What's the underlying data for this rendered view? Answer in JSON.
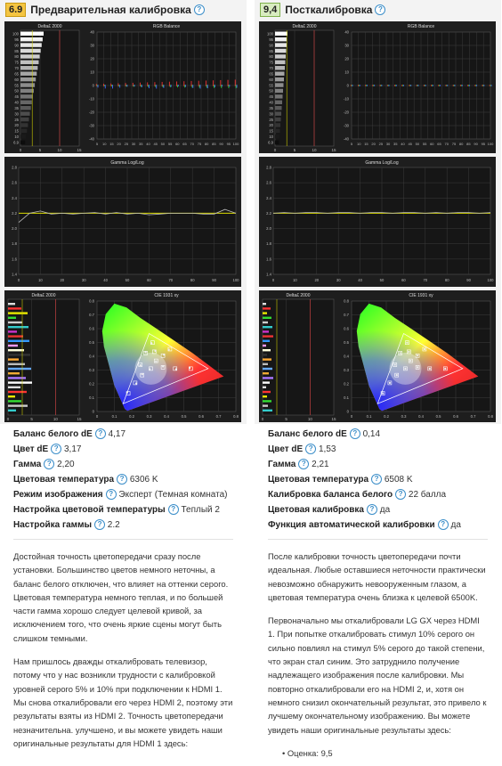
{
  "left": {
    "score": "6.9",
    "title": "Предварительная калибровка",
    "charts": {
      "grayscale": {
        "title": "Delta£ 2000",
        "rgb_title": "RGB Balance",
        "y_ticks": [
          "100",
          "95",
          "90",
          "85",
          "80",
          "75",
          "70",
          "65",
          "60",
          "55",
          "50",
          "45",
          "40",
          "35",
          "30",
          "25",
          "20",
          "15",
          "10",
          "6.9"
        ],
        "x_ticks": [
          "0",
          "5",
          "10",
          "15"
        ],
        "rgb_y_ticks": [
          "40",
          "30",
          "20",
          "10",
          "0",
          "-10",
          "-20",
          "-30",
          "-40"
        ],
        "rgb_x_ticks": [
          "5",
          "10",
          "15",
          "20",
          "25",
          "30",
          "35",
          "40",
          "45",
          "50",
          "55",
          "60",
          "65",
          "70",
          "75",
          "80",
          "85",
          "90",
          "95",
          "100"
        ]
      },
      "gamma": {
        "title": "Gamma Log/Log",
        "y_ticks": [
          "2.8",
          "2.6",
          "2.4",
          "2.2",
          "2.0",
          "1.8",
          "1.6",
          "1.4"
        ],
        "x_ticks": [
          "0",
          "10",
          "20",
          "30",
          "40",
          "50",
          "60",
          "70",
          "80",
          "90",
          "100"
        ]
      },
      "color": {
        "title": "Delta£ 2000",
        "cie_title": "CIE 1931 xy",
        "x_ticks": [
          "0",
          "5",
          "10",
          "15"
        ],
        "cie_y_ticks": [
          "0.8",
          "0.7",
          "0.6",
          "0.5",
          "0.4",
          "0.3",
          "0.2",
          "0.1",
          "0"
        ],
        "cie_x_ticks": [
          "0",
          "0.1",
          "0.2",
          "0.3",
          "0.4",
          "0.5",
          "0.6",
          "0.7",
          "0.8"
        ]
      }
    },
    "rows": [
      {
        "k": "Баланс белого dE",
        "v": "4,17"
      },
      {
        "k": "Цвет dE",
        "v": "3,17"
      },
      {
        "k": "Гамма",
        "v": "2,20"
      },
      {
        "k": "Цветовая температура",
        "v": "6306 K"
      },
      {
        "k": "Режим изображения",
        "v": "Эксперт (Темная комната)"
      },
      {
        "k": "Настройка цветовой температуры",
        "v": "Теплый 2"
      },
      {
        "k": "Настройка гаммы",
        "v": "2.2"
      }
    ],
    "paragraphs": [
      "Достойная точность цветопередачи сразу после установки. Большинство цветов немного неточны, а баланс белого отключен, что влияет на оттенки серого. Цветовая температура немного теплая, и по большей части гамма хорошо следует целевой кривой, за исключением того, что очень яркие сцены могут быть слишком темными.",
      "Нам пришлось дважды откалибровать телевизор, потому что у нас возникли трудности с калибровкой уровней серого 5% и 10% при подключении к HDMI 1. Мы снова откалибровали его через HDMI 2, поэтому эти результаты взяты из HDMI 2. Точность цветопередачи незначительна. улучшено, и вы можете увидеть наши оригинальные результаты для HDMI 1 здесь:"
    ]
  },
  "right": {
    "score": "9,4",
    "title": "Посткалибровка",
    "charts": {
      "grayscale": {
        "title": "Delta£ 2000",
        "rgb_title": "RGB Balance"
      },
      "gamma": {
        "title": "Gamma Log/Log"
      },
      "color": {
        "title": "Delta£ 2000",
        "cie_title": "CIE 1931 xy"
      }
    },
    "rows": [
      {
        "k": "Баланс белого dE",
        "v": "0,14"
      },
      {
        "k": "Цвет dE",
        "v": "1,53"
      },
      {
        "k": "Гамма",
        "v": "2,21"
      },
      {
        "k": "Цветовая температура",
        "v": "6508 K"
      },
      {
        "k": "Калибровка баланса белого",
        "v": "22 балла"
      },
      {
        "k": "Цветовая калибровка",
        "v": "да"
      },
      {
        "k": "Функция автоматической калибровки",
        "v": "да"
      }
    ],
    "paragraphs": [
      "После калибровки точность цветопередачи почти идеальная. Любые оставшиеся неточности практически невозможно обнаружить невооруженным глазом, а цветовая температура очень близка к целевой 6500K.",
      "Первоначально мы откалибровали LG GX через HDMI 1. При попытке откалибровать стимул 10% серого он сильно повлиял на стимул 5% серого до такой степени, что экран стал синим. Это затруднило получение надлежащего изображения после калибровки. Мы повторно откалибровали его на HDMI 2, и, хотя он немного снизил окончательный результат, это привело к лучшему окончательному изображению. Вы можете увидеть наши оригинальные результаты здесь:"
    ],
    "bullet": "Оценка: 9,5"
  }
}
